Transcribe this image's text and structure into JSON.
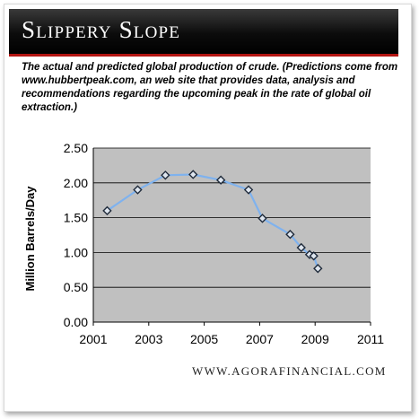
{
  "title": "Slippery Slope",
  "caption": "The actual and predicted global production of crude. (Predictions come from www.hubbertpeak.com, an web site that provides data, analysis and recommendations regarding the upcoming peak in the rate of global oil extraction.)",
  "footer": "WWW.AGORAFINANCIAL.COM",
  "colors": {
    "title_bar": "#000000",
    "accent_rule": "#b31512",
    "plot_background": "#c0c0c0",
    "line": "#7fb2ee",
    "marker": "#1f2a3a"
  },
  "chart_data": {
    "type": "line",
    "title": "",
    "xlabel": "",
    "ylabel": "Million Barrels/Day",
    "xlim": [
      2001,
      2011
    ],
    "ylim": [
      0,
      2.5
    ],
    "x_ticks": [
      "2001",
      "2003",
      "2005",
      "2007",
      "2009",
      "2011"
    ],
    "y_ticks": [
      "0.00",
      "0.50",
      "1.00",
      "1.50",
      "2.00",
      "2.50"
    ],
    "grid": "horizontal",
    "legend": "none",
    "series": [
      {
        "x": [
          2001.5,
          2002.6,
          2003.6,
          2004.6,
          2005.6,
          2006.6,
          2007.1,
          2008.1,
          2008.5,
          2008.8,
          2008.95,
          2009.1
        ],
        "y": [
          1.6,
          1.9,
          2.11,
          2.12,
          2.04,
          1.9,
          1.49,
          1.26,
          1.07,
          0.97,
          0.95,
          0.77
        ]
      }
    ]
  }
}
